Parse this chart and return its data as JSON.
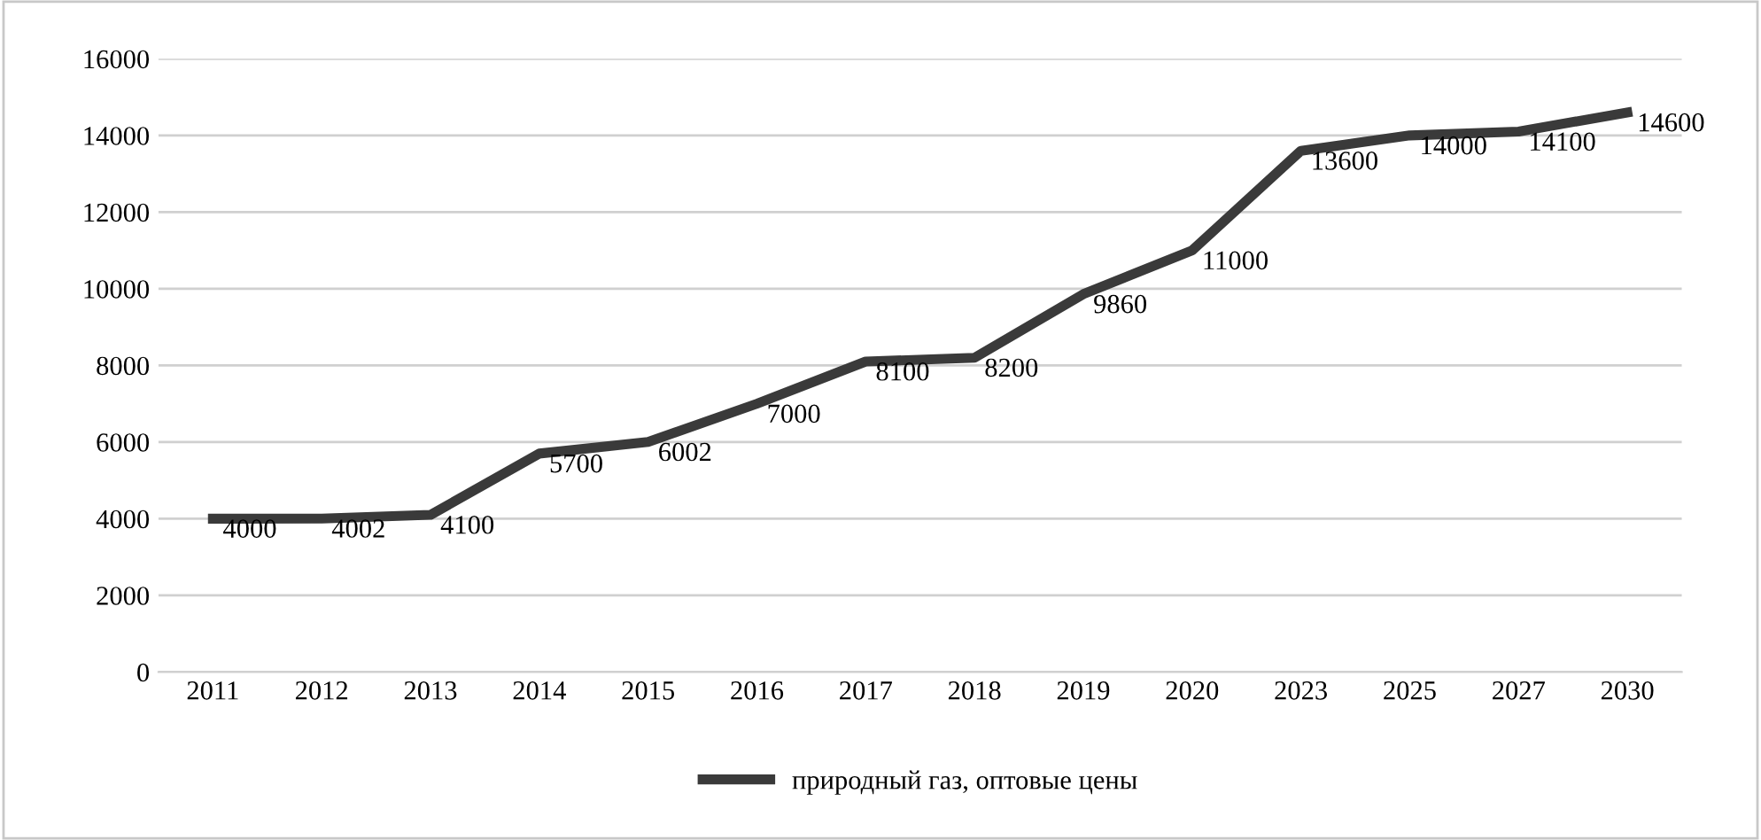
{
  "chart_data": {
    "type": "line",
    "categories": [
      "2011",
      "2012",
      "2013",
      "2014",
      "2015",
      "2016",
      "2017",
      "2018",
      "2019",
      "2020",
      "2023",
      "2025",
      "2027",
      "2030"
    ],
    "series": [
      {
        "name": "природный газ, оптовые цены",
        "color": "#3a3a3a",
        "values": [
          4000,
          4002,
          4100,
          5700,
          6002,
          7000,
          8100,
          8200,
          9860,
          11000,
          13600,
          14000,
          14100,
          14600
        ]
      }
    ],
    "ylim": [
      0,
      16000
    ],
    "yticks": [
      0,
      2000,
      4000,
      6000,
      8000,
      10000,
      12000,
      14000,
      16000
    ],
    "grid": "y",
    "legend": "bottom",
    "data_labels": true,
    "marker": "none",
    "line_style": "solid"
  }
}
